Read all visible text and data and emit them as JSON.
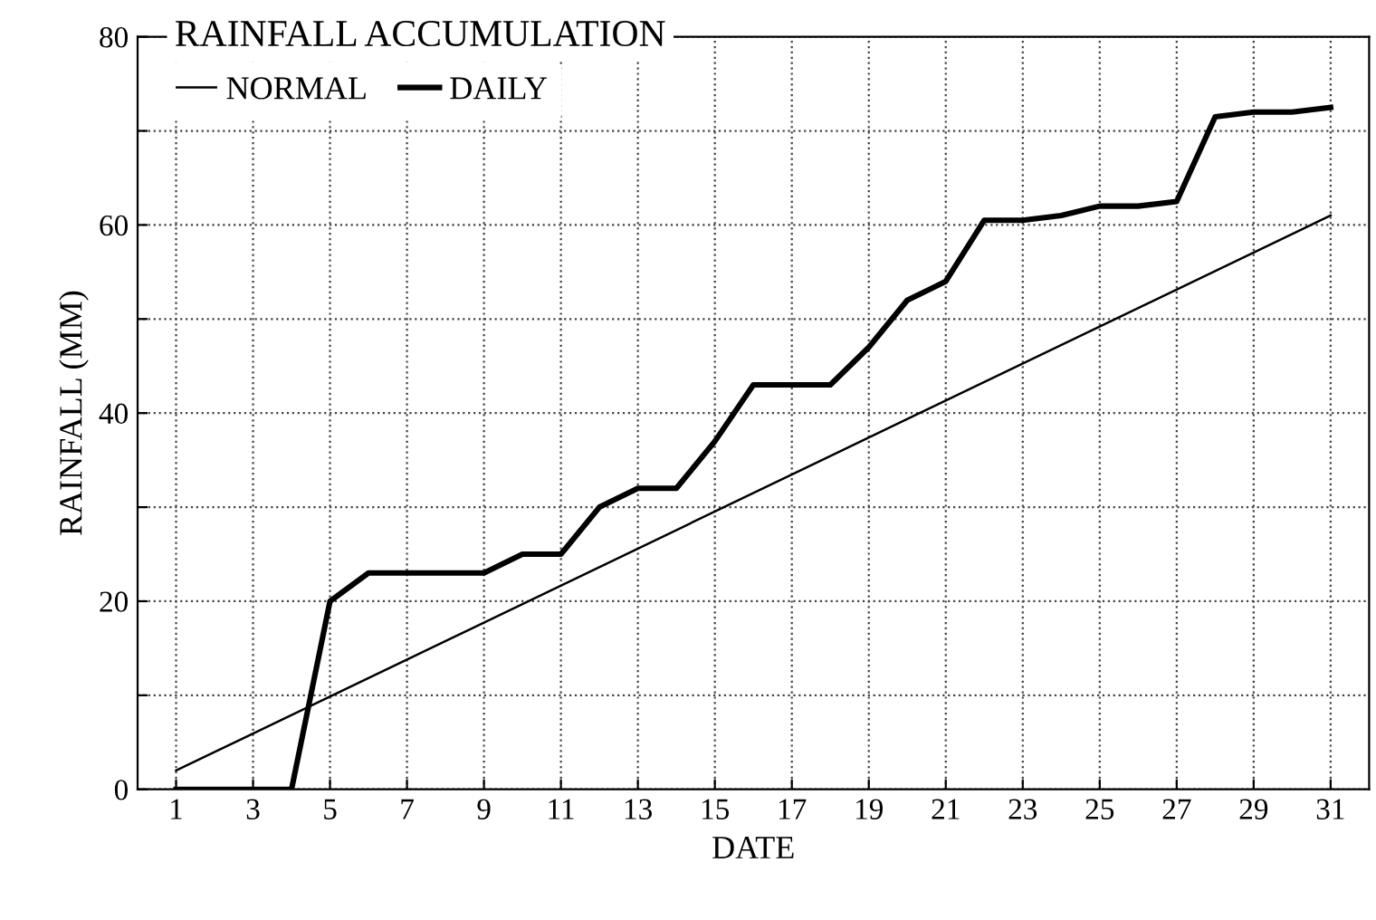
{
  "chart_data": {
    "type": "line",
    "title": "RAINFALL ACCUMULATION",
    "xlabel": "DATE",
    "ylabel": "RAINFALL (MM)",
    "series": [
      {
        "name": "NORMAL",
        "color": "#000000",
        "x": [
          1,
          31
        ],
        "values": [
          2,
          61
        ]
      },
      {
        "name": "DAILY",
        "color": "#000000",
        "x": [
          1,
          2,
          3,
          4,
          5,
          6,
          7,
          8,
          9,
          10,
          11,
          12,
          13,
          14,
          15,
          16,
          17,
          18,
          19,
          20,
          21,
          22,
          23,
          24,
          25,
          26,
          27,
          28,
          29,
          30,
          31
        ],
        "values": [
          0,
          0,
          0,
          0,
          20,
          23,
          23,
          23,
          23,
          25,
          25,
          30,
          32,
          32,
          37,
          43,
          43,
          43,
          47,
          52,
          54,
          60.5,
          60.5,
          61,
          62,
          62,
          62.5,
          71.5,
          72,
          72,
          72.5
        ]
      }
    ],
    "xlim": [
      0,
      32
    ],
    "xticks": [
      1,
      3,
      5,
      7,
      9,
      11,
      13,
      15,
      17,
      19,
      21,
      23,
      25,
      27,
      29,
      31
    ],
    "ylim": [
      0,
      80
    ],
    "yticks": [
      0,
      {
        "value": 10,
        "label": null
      },
      20,
      {
        "value": 30,
        "label": null
      },
      40,
      {
        "value": 50,
        "label": null
      },
      60,
      {
        "value": 70,
        "label": null
      },
      80
    ],
    "grid": true,
    "legend": "top left",
    "marker": "none",
    "line_style": "solid"
  }
}
